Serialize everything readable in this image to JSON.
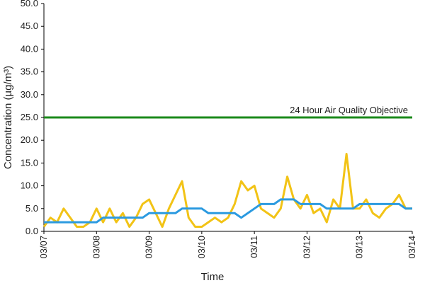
{
  "chart_data": {
    "type": "line",
    "xlabel": "Time",
    "ylabel": "Concentration (µg/m³)",
    "ylim": [
      0,
      50
    ],
    "yticks": [
      {
        "value": 0,
        "label": "0.0"
      },
      {
        "value": 5,
        "label": "5.0"
      },
      {
        "value": 10,
        "label": "10.0"
      },
      {
        "value": 15,
        "label": "15.0"
      },
      {
        "value": 20,
        "label": "20.0"
      },
      {
        "value": 25,
        "label": "25.0"
      },
      {
        "value": 30,
        "label": "30.0"
      },
      {
        "value": 35,
        "label": "35.0"
      },
      {
        "value": 40,
        "label": "40.0"
      },
      {
        "value": 45,
        "label": "45.0"
      },
      {
        "value": 50,
        "label": "50.0"
      }
    ],
    "xticks": [
      "03/07",
      "03/08",
      "03/09",
      "03/10",
      "03/11",
      "03/12",
      "03/13",
      "03/14"
    ],
    "grid": false,
    "series": [
      {
        "color": "#f2c316",
        "values": [
          1,
          3,
          2,
          5,
          3,
          1,
          1,
          2,
          5,
          2,
          5,
          2,
          4,
          1,
          3,
          6,
          7,
          4,
          1,
          5,
          8,
          11,
          3,
          1,
          1,
          2,
          3,
          2,
          3,
          6,
          11,
          9,
          10,
          5,
          4,
          3,
          5,
          12,
          7,
          5,
          8,
          4,
          5,
          2,
          7,
          5,
          17,
          5,
          5,
          7,
          4,
          3,
          5,
          6,
          8,
          5,
          5
        ]
      },
      {
        "color": "#2b9ae0",
        "values": [
          2,
          2,
          2,
          2,
          2,
          2,
          2,
          2,
          2,
          3,
          3,
          3,
          3,
          3,
          3,
          3,
          4,
          4,
          4,
          4,
          4,
          5,
          5,
          5,
          5,
          4,
          4,
          4,
          4,
          4,
          3,
          4,
          5,
          6,
          6,
          6,
          7,
          7,
          7,
          6,
          6,
          6,
          6,
          5,
          5,
          5,
          5,
          5,
          6,
          6,
          6,
          6,
          6,
          6,
          6,
          5,
          5
        ]
      }
    ],
    "hlines": [
      {
        "value": 25,
        "label": "24 Hour Air Quality Objective",
        "color": "#1b8a1b"
      }
    ]
  }
}
